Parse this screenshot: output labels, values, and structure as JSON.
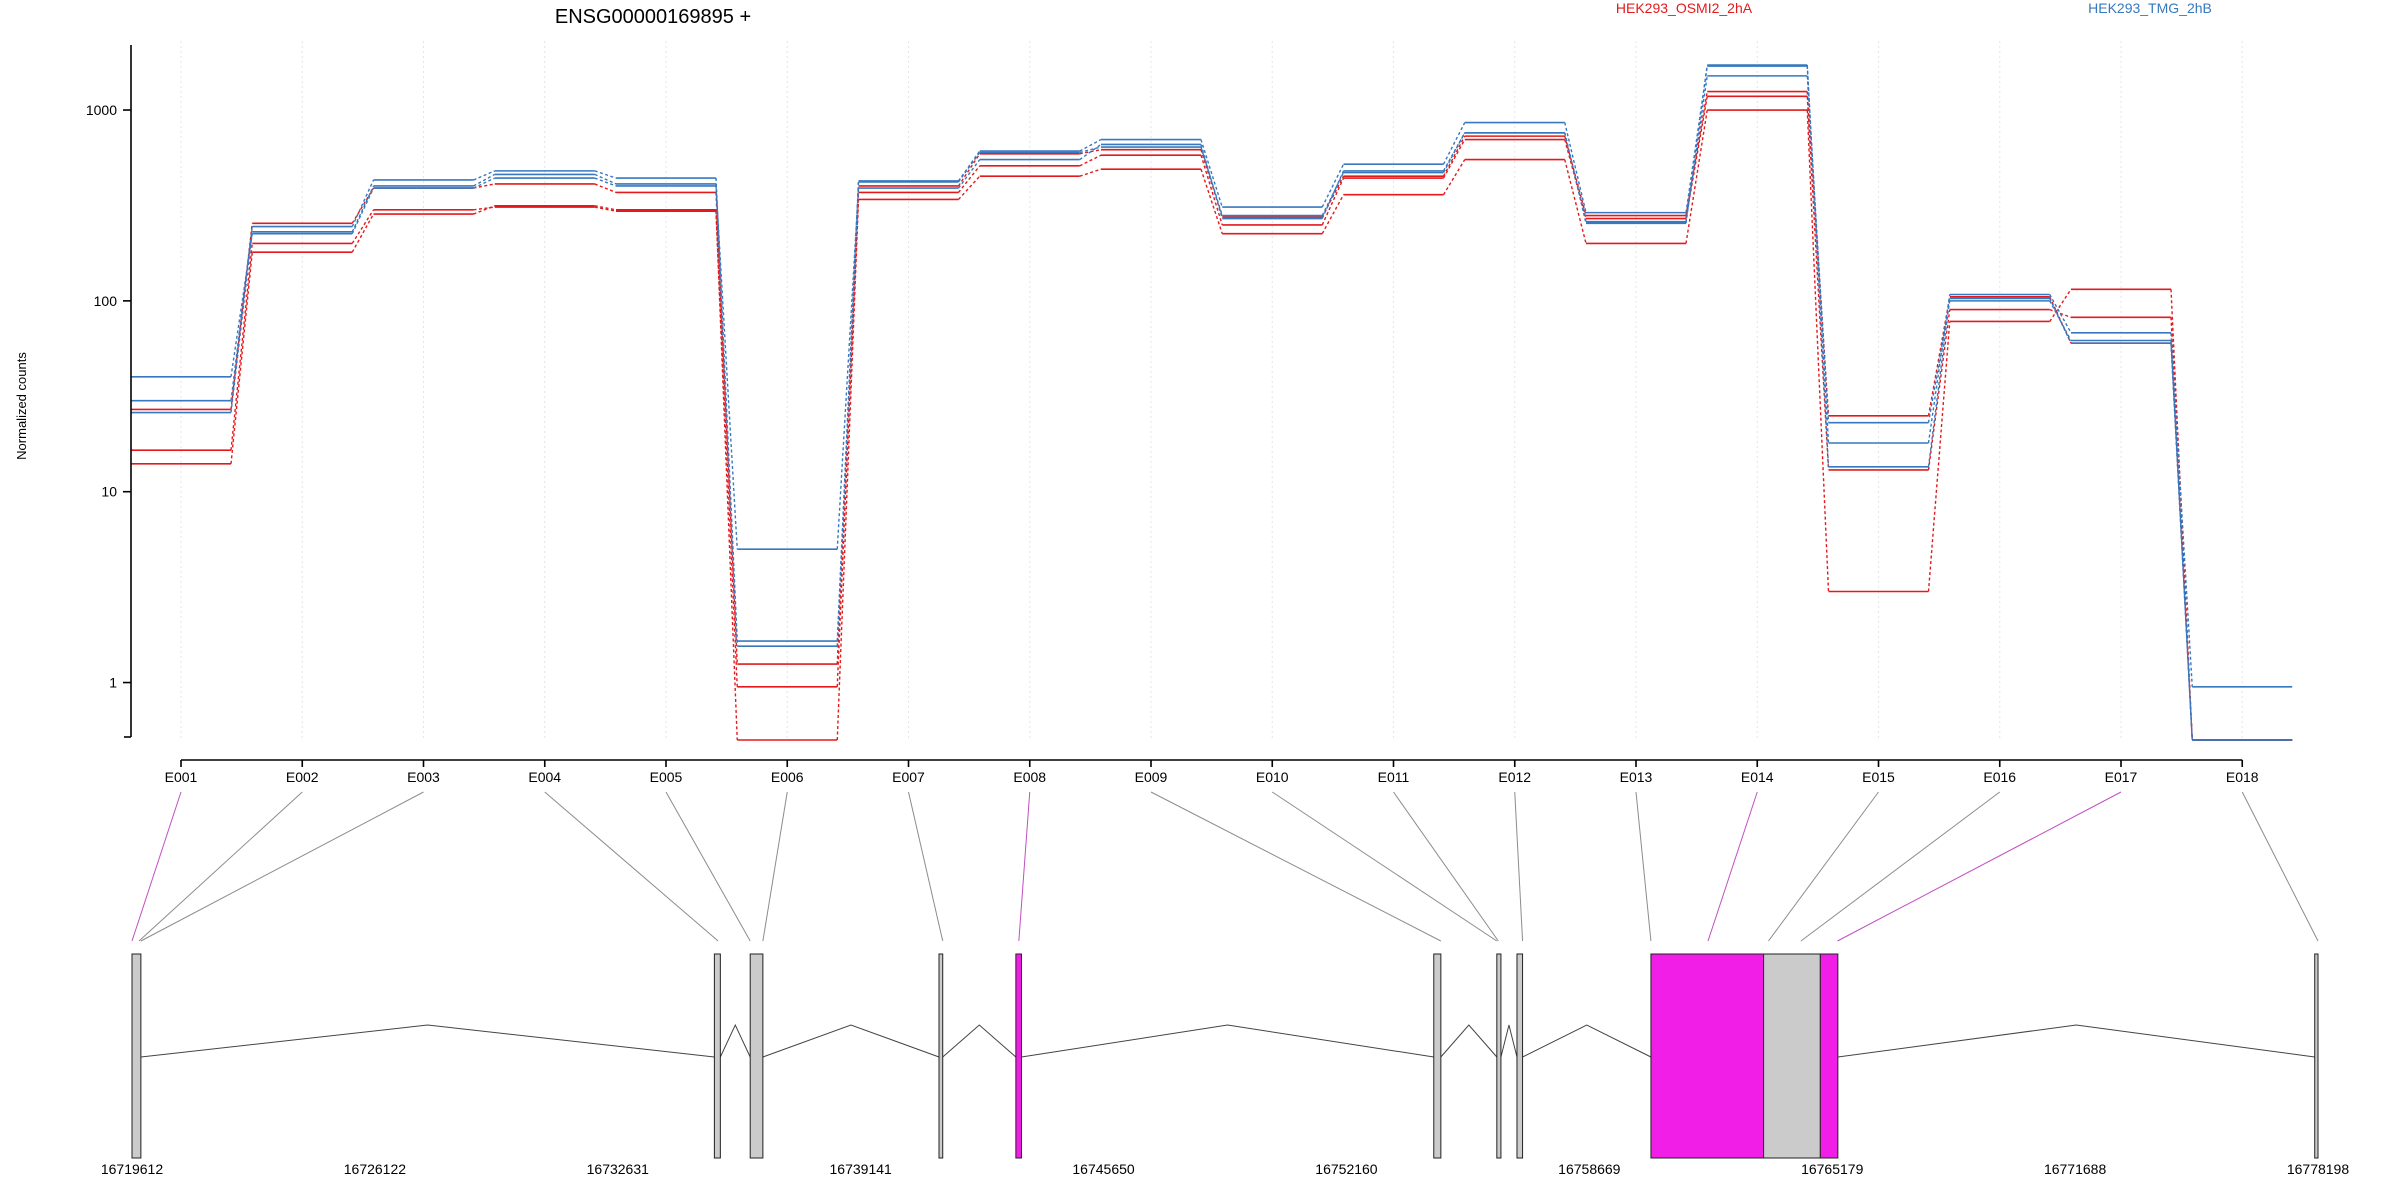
{
  "chart_data": {
    "type": "line",
    "title": "ENSG00000169895 +",
    "ylabel": "Normalized counts",
    "y_scale": "log",
    "ylim": [
      0.5,
      2300
    ],
    "y_ticks": [
      1,
      10,
      100,
      1000
    ],
    "y_tick_labels": [
      "1",
      "10",
      "100",
      "1000"
    ],
    "grid": "vertical dotted lines at exons",
    "categories": [
      "E001",
      "E002",
      "E003",
      "E004",
      "E005",
      "E006",
      "E007",
      "E008",
      "E009",
      "E010",
      "E011",
      "E012",
      "E013",
      "E014",
      "E015",
      "E016",
      "E017",
      "E018"
    ],
    "groups": [
      {
        "name": "HEK293_OSMI2_2hA",
        "color": "#e31a1c"
      },
      {
        "name": "HEK293_TMG_2hB",
        "color": "#3778bf"
      }
    ],
    "series": [
      {
        "group": 0,
        "values": [
          14,
          180,
          285,
          315,
          300,
          0.5,
          340,
          450,
          490,
          225,
          360,
          550,
          200,
          1000,
          3,
          78,
          115,
          0.5
        ]
      },
      {
        "group": 0,
        "values": [
          16.5,
          200,
          300,
          310,
          295,
          0.95,
          370,
          510,
          580,
          250,
          440,
          700,
          270,
          1180,
          13,
          90,
          82,
          0.5
        ]
      },
      {
        "group": 0,
        "values": [
          27,
          255,
          390,
          410,
          370,
          1.25,
          400,
          590,
          620,
          275,
          450,
          730,
          280,
          1250,
          25,
          105,
          60,
          0.5
        ]
      },
      {
        "group": 1,
        "values": [
          26,
          230,
          400,
          460,
          410,
          1.55,
          420,
          600,
          640,
          280,
          470,
          760,
          260,
          1510,
          23,
          100,
          62,
          0.5
        ]
      },
      {
        "group": 1,
        "values": [
          30,
          245,
          430,
          480,
          440,
          1.65,
          425,
          610,
          700,
          310,
          520,
          860,
          290,
          1700,
          18,
          108,
          68,
          0.95
        ]
      },
      {
        "group": 1,
        "values": [
          40,
          225,
          390,
          440,
          400,
          5,
          390,
          550,
          660,
          270,
          480,
          760,
          255,
          1720,
          13.5,
          103,
          60,
          0.5
        ]
      }
    ],
    "gene_model": {
      "x_ticks": [
        16719612,
        16726122,
        16732631,
        16739141,
        16745650,
        16752160,
        16758669,
        16765179,
        16771688,
        16778198
      ],
      "x_tick_labels": [
        "16719612",
        "16726122",
        "16732631",
        "16739141",
        "16745650",
        "16752160",
        "16758669",
        "16765179",
        "16771688",
        "16778198"
      ],
      "xlim": [
        16719612,
        16778198
      ],
      "highlight_color": "#f01ee6",
      "exon_color": "#cbcbcb",
      "exons": [
        {
          "start": 16719612,
          "end": 16719850,
          "highlight": false
        },
        {
          "start": 16735220,
          "end": 16735380,
          "highlight": false
        },
        {
          "start": 16736180,
          "end": 16736520,
          "highlight": false
        },
        {
          "start": 16741240,
          "end": 16741340,
          "highlight": false
        },
        {
          "start": 16743300,
          "end": 16743450,
          "highlight": true
        },
        {
          "start": 16754500,
          "end": 16754690,
          "highlight": false
        },
        {
          "start": 16756190,
          "end": 16756300,
          "highlight": false
        },
        {
          "start": 16756730,
          "end": 16756880,
          "highlight": false
        },
        {
          "start": 16760320,
          "end": 16763340,
          "highlight": true
        },
        {
          "start": 16763340,
          "end": 16764860,
          "highlight": false
        },
        {
          "start": 16764860,
          "end": 16765330,
          "highlight": true
        },
        {
          "start": 16778110,
          "end": 16778198,
          "highlight": false
        }
      ],
      "exon_bin_positions": [
        16719612,
        16719800,
        16719850,
        16735320,
        16736180,
        16736520,
        16741340,
        16743380,
        16754690,
        16756190,
        16756230,
        16756880,
        16760320,
        16761850,
        16763470,
        16764340,
        16765320,
        16778198
      ],
      "highlighted_bins": [
        0,
        7,
        13,
        16
      ]
    }
  }
}
